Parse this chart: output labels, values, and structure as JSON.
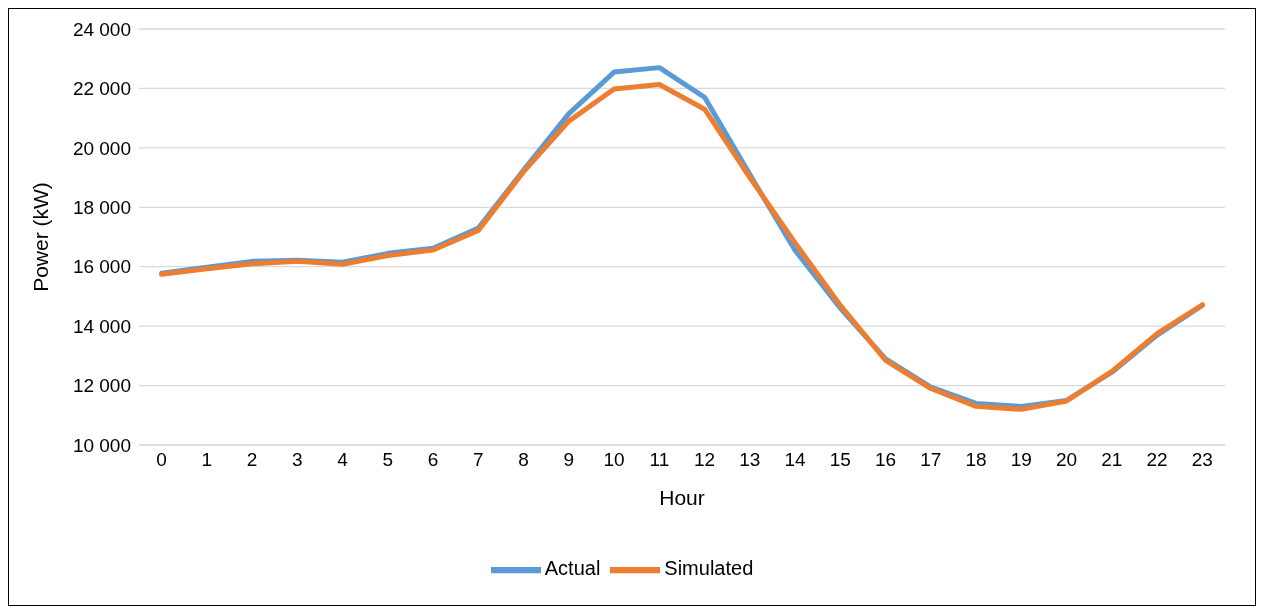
{
  "chart_data": {
    "type": "line",
    "xlabel": "Hour",
    "ylabel": "Power (kW)",
    "x": [
      0,
      1,
      2,
      3,
      4,
      5,
      6,
      7,
      8,
      9,
      10,
      11,
      12,
      13,
      14,
      15,
      16,
      17,
      18,
      19,
      20,
      21,
      22,
      23
    ],
    "xlim": [
      -0.5,
      23.5
    ],
    "xticks": [
      0,
      1,
      2,
      3,
      4,
      5,
      6,
      7,
      8,
      9,
      10,
      11,
      12,
      13,
      14,
      15,
      16,
      17,
      18,
      19,
      20,
      21,
      22,
      23
    ],
    "series": [
      {
        "name": "Actual",
        "color": "#5b9bd5",
        "values": [
          15780,
          15980,
          16180,
          16220,
          16150,
          16450,
          16620,
          17300,
          19250,
          21150,
          22550,
          22700,
          21700,
          19100,
          16550,
          14600,
          12900,
          11950,
          11400,
          11300,
          11500,
          12450,
          13700,
          14700
        ]
      },
      {
        "name": "Simulated",
        "color": "#ed7d31",
        "values": [
          15750,
          15930,
          16100,
          16180,
          16080,
          16380,
          16560,
          17220,
          19200,
          20900,
          21980,
          22130,
          21300,
          19000,
          16800,
          14700,
          12850,
          11900,
          11300,
          11200,
          11480,
          12480,
          13750,
          14720
        ]
      }
    ],
    "ylim": [
      10000,
      24000
    ],
    "yticks": [
      {
        "value": 10000,
        "label": "10 000"
      },
      {
        "value": 12000,
        "label": "12 000"
      },
      {
        "value": 14000,
        "label": "14 000"
      },
      {
        "value": 16000,
        "label": "16 000"
      },
      {
        "value": 18000,
        "label": "18 000"
      },
      {
        "value": 20000,
        "label": "20 000"
      },
      {
        "value": 22000,
        "label": "22 000"
      },
      {
        "value": 24000,
        "label": "24 000"
      }
    ],
    "grid": "y",
    "legend": "bottom",
    "marker": "none",
    "line_style": "solid"
  }
}
